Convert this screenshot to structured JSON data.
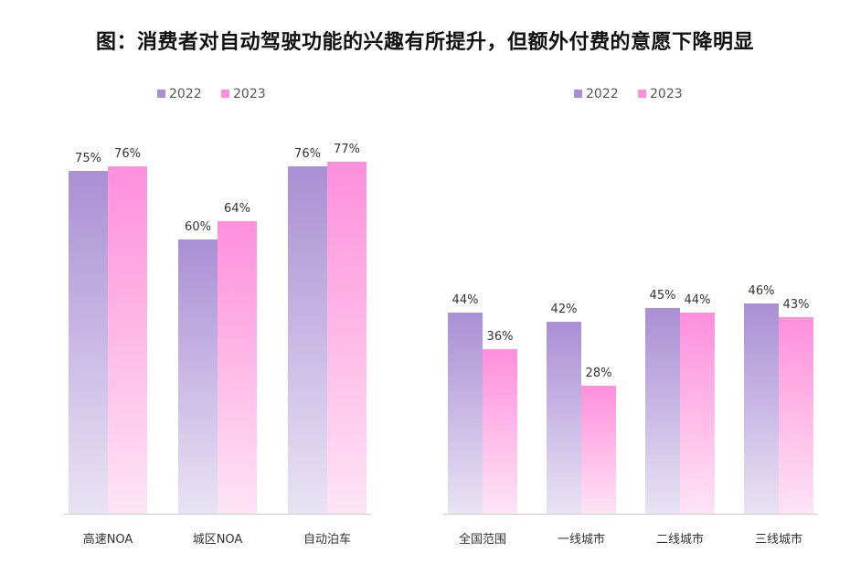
{
  "title": "图：消费者对自动驾驶功能的兴趣有所提升，但额外付费的意愿下降明显",
  "colors": {
    "series_2022_top": "#a98fd4",
    "series_2022_bottom": "#e9e3f4",
    "series_2023_top": "#ff8fdc",
    "series_2023_bottom": "#fde4f4",
    "baseline": "#cccccc"
  },
  "chart_data": [
    {
      "type": "bar",
      "title": "",
      "xlabel": "",
      "ylabel": "",
      "ylim": [
        0,
        100
      ],
      "legend": "top-left",
      "grid": false,
      "categories": [
        "高速NOA",
        "城区NOA",
        "自动泊车"
      ],
      "series": [
        {
          "name": "2022",
          "values": [
            75,
            60,
            76
          ],
          "labels": [
            "75%",
            "60%",
            "76%"
          ]
        },
        {
          "name": "2023",
          "values": [
            76,
            64,
            77
          ],
          "labels": [
            "76%",
            "64%",
            "77%"
          ]
        }
      ]
    },
    {
      "type": "bar",
      "title": "",
      "xlabel": "",
      "ylabel": "",
      "ylim": [
        0,
        100
      ],
      "legend": "top-left",
      "grid": false,
      "categories": [
        "全国范围",
        "一线城市",
        "二线城市",
        "三线城市"
      ],
      "series": [
        {
          "name": "2022",
          "values": [
            44,
            42,
            45,
            46
          ],
          "labels": [
            "44%",
            "42%",
            "45%",
            "46%"
          ]
        },
        {
          "name": "2023",
          "values": [
            36,
            28,
            44,
            43
          ],
          "labels": [
            "36%",
            "28%",
            "44%",
            "43%"
          ]
        }
      ]
    }
  ]
}
